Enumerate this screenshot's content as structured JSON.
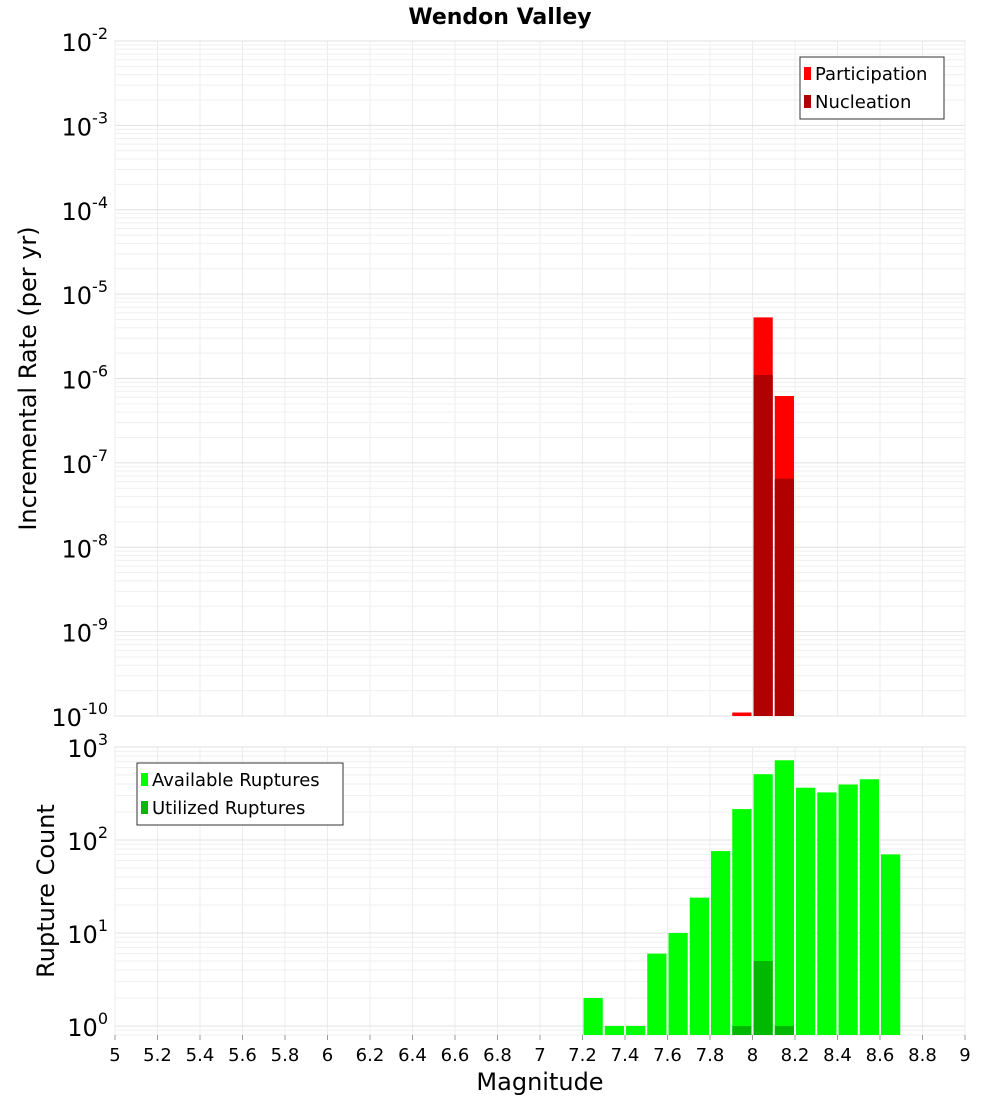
{
  "title": "Wendon Valley",
  "xlabel": "Magnitude",
  "chart_data": [
    {
      "type": "bar",
      "ylabel": "Incremental Rate (per yr)",
      "yscale": "log",
      "ylim": [
        1e-10,
        0.01
      ],
      "xlim": [
        5,
        9
      ],
      "bin_width": 0.1,
      "grid": true,
      "legend_position": "top-right",
      "series": [
        {
          "name": "Participation",
          "color": "#ff0000",
          "points": [
            {
              "x": 7.95,
              "y": 1.1e-10
            },
            {
              "x": 8.05,
              "y": 5.3e-06
            },
            {
              "x": 8.15,
              "y": 6.2e-07
            }
          ]
        },
        {
          "name": "Nucleation",
          "color": "#b00000",
          "points": [
            {
              "x": 8.05,
              "y": 1.1e-06
            },
            {
              "x": 8.15,
              "y": 6.5e-08
            }
          ]
        }
      ]
    },
    {
      "type": "bar",
      "ylabel": "Rupture Count",
      "yscale": "log",
      "ylim": [
        0.8,
        1000
      ],
      "xlim": [
        5,
        9
      ],
      "bin_width": 0.1,
      "grid": true,
      "legend_position": "top-left",
      "series": [
        {
          "name": "Available Ruptures",
          "color": "#00ff00",
          "points": [
            {
              "x": 7.25,
              "y": 2
            },
            {
              "x": 7.35,
              "y": 1
            },
            {
              "x": 7.45,
              "y": 1
            },
            {
              "x": 7.55,
              "y": 6
            },
            {
              "x": 7.65,
              "y": 10
            },
            {
              "x": 7.75,
              "y": 24
            },
            {
              "x": 7.85,
              "y": 76
            },
            {
              "x": 7.95,
              "y": 215
            },
            {
              "x": 8.05,
              "y": 510
            },
            {
              "x": 8.15,
              "y": 720
            },
            {
              "x": 8.25,
              "y": 365
            },
            {
              "x": 8.35,
              "y": 325
            },
            {
              "x": 8.45,
              "y": 395
            },
            {
              "x": 8.55,
              "y": 450
            },
            {
              "x": 8.65,
              "y": 70
            }
          ]
        },
        {
          "name": "Utilized Ruptures",
          "color": "#00b800",
          "points": [
            {
              "x": 7.95,
              "y": 1
            },
            {
              "x": 8.05,
              "y": 5
            },
            {
              "x": 8.15,
              "y": 1
            }
          ]
        }
      ]
    }
  ],
  "x_ticks": [
    "5",
    "5.2",
    "5.4",
    "5.6",
    "5.8",
    "6",
    "6.2",
    "6.4",
    "6.6",
    "6.8",
    "7",
    "7.2",
    "7.4",
    "7.6",
    "7.8",
    "8",
    "8.2",
    "8.4",
    "8.6",
    "8.8",
    "9"
  ]
}
